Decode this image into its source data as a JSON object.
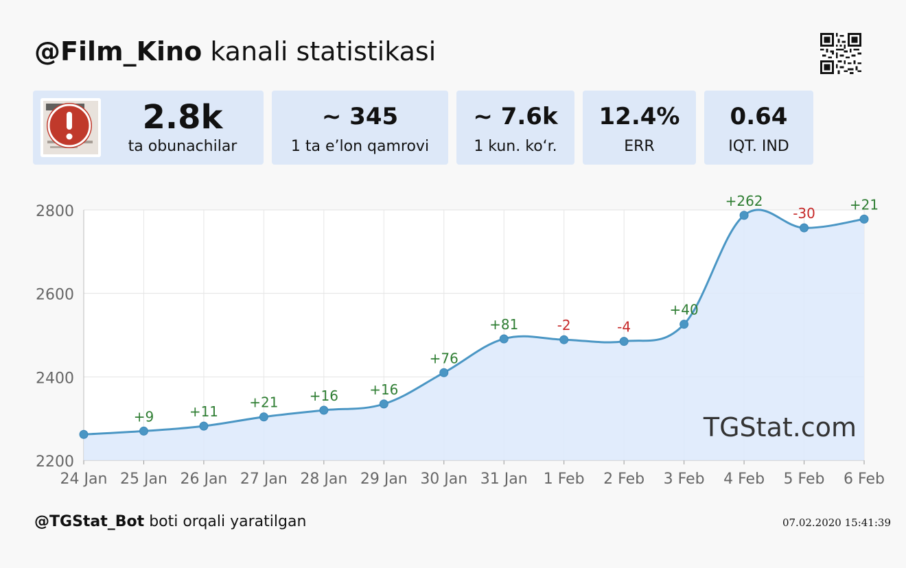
{
  "header": {
    "channel_handle": "@Film_Kino",
    "title_suffix": "kanali statistikasi"
  },
  "stats": {
    "subscribers": {
      "value": "2.8k",
      "label": "ta obunachilar"
    },
    "reach": {
      "value": "~ 345",
      "label": "1 ta e’lon qamrovi"
    },
    "daily_views": {
      "value": "~ 7.6k",
      "label": "1 kun. ko‘r."
    },
    "err": {
      "value": "12.4%",
      "label": "ERR"
    },
    "citation": {
      "value": "0.64",
      "label": "IQT. IND"
    }
  },
  "icons": {
    "avatar_alert": "exclamation-alert-icon",
    "qr": "qr-code-icon"
  },
  "colors": {
    "line": "#4a96c4",
    "area": "#dce9fb",
    "positive_label": "#2e7d32",
    "negative_label": "#c62828",
    "card_bg": "#dde8f8",
    "alert_red": "#c0392b"
  },
  "chart_data": {
    "type": "line",
    "categories": [
      "24 Jan",
      "25 Jan",
      "26 Jan",
      "27 Jan",
      "28 Jan",
      "29 Jan",
      "30 Jan",
      "31 Jan",
      "1 Feb",
      "2 Feb",
      "3 Feb",
      "4 Feb",
      "5 Feb",
      "6 Feb"
    ],
    "values": [
      2262,
      2270,
      2282,
      2304,
      2320,
      2335,
      2410,
      2491,
      2489,
      2485,
      2526,
      2787,
      2757,
      2778
    ],
    "deltas": [
      "",
      "+9",
      "+11",
      "+21",
      "+16",
      "+16",
      "+76",
      "+81",
      "-2",
      "-4",
      "+40",
      "+262",
      "-30",
      "+21"
    ],
    "ylim": [
      2200,
      2800
    ],
    "yticks": [
      "2200",
      "2400",
      "2600",
      "2800"
    ],
    "grid": true,
    "fill": true,
    "watermark": "TGStat.com"
  },
  "footer": {
    "bot": "@TGStat_Bot",
    "created_via": "boti orqali yaratilgan",
    "timestamp": "07.02.2020 15:41:39"
  }
}
